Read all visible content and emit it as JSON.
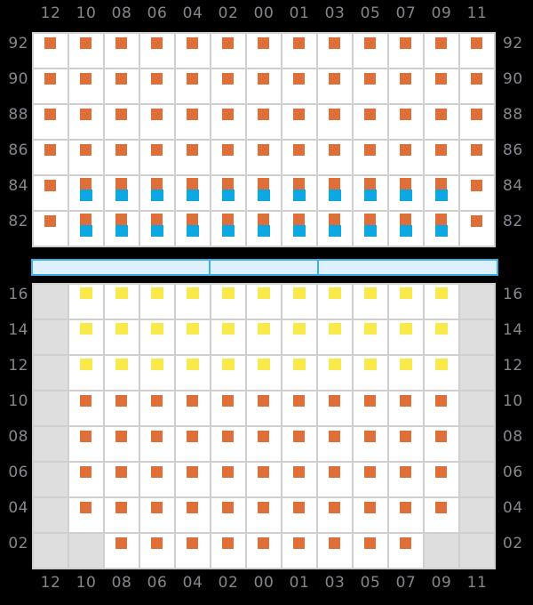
{
  "colors": {
    "background": "#000000",
    "label_gray": "#86868E",
    "cell_white": "#FFFFFF",
    "cell_disabled_gray": "#DEDEDE",
    "grid_line": "#CFCFCF",
    "marker_orange": "#DE6F39",
    "marker_blue": "#0DA8E2",
    "marker_yellow": "#F9E94A",
    "bar_fill": "#DEF0FB",
    "bar_border": "#3AB0E8"
  },
  "hour_labels": [
    "12",
    "10",
    "08",
    "06",
    "04",
    "02",
    "00",
    "01",
    "03",
    "05",
    "07",
    "09",
    "11"
  ],
  "top_panel": {
    "rows": [
      {
        "label": "92",
        "cells": [
          "O",
          "O",
          "O",
          "O",
          "O",
          "O",
          "O",
          "O",
          "O",
          "O",
          "O",
          "O",
          "O"
        ]
      },
      {
        "label": "90",
        "cells": [
          "O",
          "O",
          "O",
          "O",
          "O",
          "O",
          "O",
          "O",
          "O",
          "O",
          "O",
          "O",
          "O"
        ]
      },
      {
        "label": "88",
        "cells": [
          "O",
          "O",
          "O",
          "O",
          "O",
          "O",
          "O",
          "O",
          "O",
          "O",
          "O",
          "O",
          "O"
        ]
      },
      {
        "label": "86",
        "cells": [
          "O",
          "O",
          "O",
          "O",
          "O",
          "O",
          "O",
          "O",
          "O",
          "O",
          "O",
          "O",
          "O"
        ]
      },
      {
        "label": "84",
        "cells": [
          "O",
          "OB",
          "OB",
          "OB",
          "OB",
          "OB",
          "OB",
          "OB",
          "OB",
          "OB",
          "OB",
          "OB",
          "O"
        ]
      },
      {
        "label": "82",
        "cells": [
          "O",
          "OB",
          "OB",
          "OB",
          "OB",
          "OB",
          "OB",
          "OB",
          "OB",
          "OB",
          "OB",
          "OB",
          "O"
        ]
      }
    ]
  },
  "selector_bar": {
    "segment_widths": [
      200,
      120,
      198
    ]
  },
  "bottom_panel": {
    "rows": [
      {
        "label": "16",
        "cells": [
          "G",
          "Y",
          "Y",
          "Y",
          "Y",
          "Y",
          "Y",
          "Y",
          "Y",
          "Y",
          "Y",
          "Y",
          "G"
        ]
      },
      {
        "label": "14",
        "cells": [
          "G",
          "Y",
          "Y",
          "Y",
          "Y",
          "Y",
          "Y",
          "Y",
          "Y",
          "Y",
          "Y",
          "Y",
          "G"
        ]
      },
      {
        "label": "12",
        "cells": [
          "G",
          "Y",
          "Y",
          "Y",
          "Y",
          "Y",
          "Y",
          "Y",
          "Y",
          "Y",
          "Y",
          "Y",
          "G"
        ]
      },
      {
        "label": "10",
        "cells": [
          "G",
          "O",
          "O",
          "O",
          "O",
          "O",
          "O",
          "O",
          "O",
          "O",
          "O",
          "O",
          "G"
        ]
      },
      {
        "label": "08",
        "cells": [
          "G",
          "O",
          "O",
          "O",
          "O",
          "O",
          "O",
          "O",
          "O",
          "O",
          "O",
          "O",
          "G"
        ]
      },
      {
        "label": "06",
        "cells": [
          "G",
          "O",
          "O",
          "O",
          "O",
          "O",
          "O",
          "O",
          "O",
          "O",
          "O",
          "O",
          "G"
        ]
      },
      {
        "label": "04",
        "cells": [
          "G",
          "O",
          "O",
          "O",
          "O",
          "O",
          "O",
          "O",
          "O",
          "O",
          "O",
          "O",
          "G"
        ]
      },
      {
        "label": "02",
        "cells": [
          "G",
          "G",
          "O",
          "O",
          "O",
          "O",
          "O",
          "O",
          "O",
          "O",
          "O",
          "G",
          "G"
        ]
      }
    ]
  }
}
